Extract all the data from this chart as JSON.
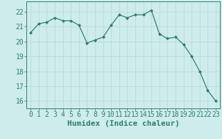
{
  "x": [
    0,
    1,
    2,
    3,
    4,
    5,
    6,
    7,
    8,
    9,
    10,
    11,
    12,
    13,
    14,
    15,
    16,
    17,
    18,
    19,
    20,
    21,
    22,
    23
  ],
  "y": [
    20.6,
    21.2,
    21.3,
    21.6,
    21.4,
    21.4,
    21.1,
    19.9,
    20.1,
    20.3,
    21.1,
    21.8,
    21.6,
    21.8,
    21.8,
    22.1,
    20.5,
    20.2,
    20.3,
    19.8,
    19.0,
    18.0,
    16.7,
    16.0
  ],
  "line_color": "#2e7d6e",
  "marker": "D",
  "marker_size": 2,
  "bg_color": "#ceecea",
  "grid_color": "#b8dbd8",
  "tick_color": "#2e7d6e",
  "spine_color": "#2e7d6e",
  "xlabel": "Humidex (Indice chaleur)",
  "ylim": [
    15.5,
    22.7
  ],
  "xlim": [
    -0.5,
    23.5
  ],
  "yticks": [
    16,
    17,
    18,
    19,
    20,
    21,
    22
  ],
  "xticks": [
    0,
    1,
    2,
    3,
    4,
    5,
    6,
    7,
    8,
    9,
    10,
    11,
    12,
    13,
    14,
    15,
    16,
    17,
    18,
    19,
    20,
    21,
    22,
    23
  ],
  "tick_fontsize": 7,
  "xlabel_fontsize": 8
}
